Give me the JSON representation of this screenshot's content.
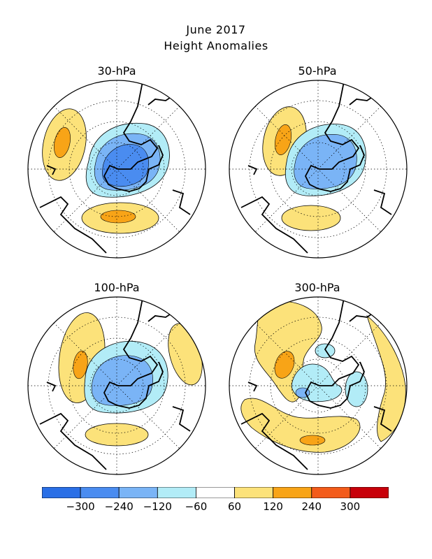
{
  "title": "June 2017",
  "subtitle": "Height Anomalies",
  "panels": [
    {
      "label": "30-hPa"
    },
    {
      "label": "50-hPa"
    },
    {
      "label": "100-hPa"
    },
    {
      "label": "300-hPa"
    }
  ],
  "colorbar": {
    "colors": [
      "#2a6fe6",
      "#4a8cf0",
      "#7ab4f6",
      "#b2ecf7",
      "#ffffff",
      "#fce27a",
      "#f8a417",
      "#f35b1a",
      "#c8000a"
    ],
    "labels": [
      "-300",
      "-240",
      "-120",
      "-60",
      "60",
      "120",
      "240",
      "300"
    ]
  },
  "colors": {
    "neg1": "#b2ecf7",
    "neg2": "#7ab4f6",
    "neg3": "#4a8cf0",
    "pos1": "#fce27a",
    "pos2": "#f8a417"
  }
}
